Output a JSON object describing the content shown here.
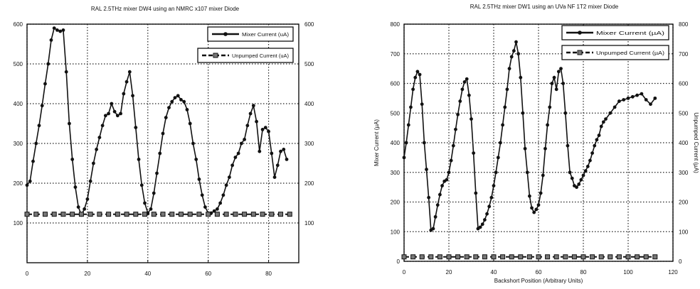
{
  "chart_data": [
    {
      "type": "line",
      "title": "RAL 2.5THz mixer DW4 using an NMRC x107 mixer Diode",
      "xlabel": "",
      "ylabel": "",
      "y2label": "",
      "xlim": [
        0,
        90
      ],
      "ylim": [
        0,
        600
      ],
      "y2lim": [
        0,
        600
      ],
      "xticks": [
        0,
        20,
        40,
        60,
        80
      ],
      "yticks": [
        100,
        200,
        300,
        400,
        500,
        600
      ],
      "y2ticks": [
        100,
        200,
        300,
        400,
        500,
        600
      ],
      "grid": true,
      "legend_position": "top-right",
      "series": [
        {
          "name": "Mixer Current (uA)",
          "style": "solid-dot",
          "x": [
            0,
            1,
            2,
            3,
            4,
            5,
            6,
            7,
            8,
            9,
            10,
            11,
            12,
            13,
            14,
            15,
            16,
            17,
            18,
            19,
            20,
            21,
            22,
            23,
            24,
            25,
            26,
            27,
            28,
            29,
            30,
            31,
            32,
            33,
            34,
            35,
            36,
            37,
            38,
            39,
            40,
            41,
            42,
            43,
            44,
            45,
            46,
            47,
            48,
            49,
            50,
            51,
            52,
            53,
            54,
            55,
            56,
            57,
            58,
            59,
            60,
            61,
            62,
            63,
            64,
            65,
            66,
            67,
            68,
            69,
            70,
            71,
            72,
            73,
            74,
            75,
            76,
            77,
            78,
            79,
            80,
            81,
            82,
            83,
            84,
            85,
            86
          ],
          "y": [
            195,
            205,
            255,
            300,
            345,
            395,
            450,
            500,
            560,
            590,
            585,
            582,
            585,
            480,
            350,
            260,
            190,
            140,
            120,
            135,
            160,
            205,
            250,
            285,
            315,
            345,
            370,
            375,
            400,
            380,
            370,
            375,
            425,
            455,
            480,
            420,
            340,
            260,
            195,
            150,
            125,
            135,
            175,
            225,
            275,
            325,
            365,
            390,
            405,
            415,
            420,
            410,
            405,
            385,
            350,
            300,
            260,
            210,
            170,
            140,
            125,
            125,
            130,
            135,
            150,
            170,
            195,
            215,
            245,
            265,
            275,
            300,
            310,
            345,
            375,
            395,
            355,
            280,
            335,
            340,
            330,
            275,
            215,
            245,
            280,
            285,
            260
          ]
        },
        {
          "name": "Unpumped Current (uA)",
          "style": "dashed-square",
          "x": [
            0,
            3,
            6,
            9,
            12,
            15,
            18,
            21,
            24,
            27,
            30,
            33,
            36,
            39,
            42,
            45,
            48,
            51,
            54,
            57,
            60,
            63,
            66,
            69,
            72,
            75,
            78,
            81,
            84,
            87
          ],
          "y": [
            122,
            122,
            122,
            122,
            122,
            122,
            122,
            122,
            122,
            122,
            122,
            122,
            122,
            122,
            122,
            122,
            122,
            122,
            122,
            122,
            122,
            122,
            122,
            122,
            122,
            122,
            122,
            122,
            122,
            122
          ]
        }
      ]
    },
    {
      "type": "line",
      "title": "RAL 2.5THz mixer DW1 using an UVa NF 1T2 mixer Diode",
      "xlabel": "Backshort Position (Arbitrary Units)",
      "ylabel": "Mixer Current (µA)",
      "y2label": "Unpumped Current (µA)",
      "xlim": [
        0,
        120
      ],
      "ylim": [
        0,
        800
      ],
      "y2lim": [
        0,
        800
      ],
      "xticks": [
        0,
        20,
        40,
        60,
        80,
        100,
        120
      ],
      "yticks": [
        0,
        100,
        200,
        300,
        400,
        500,
        600,
        700,
        800
      ],
      "y2ticks": [
        0,
        100,
        200,
        300,
        400,
        500,
        600,
        700,
        800
      ],
      "grid": true,
      "legend_position": "top-right",
      "series": [
        {
          "name": "Mixer Current (µA)",
          "style": "solid-dot",
          "x": [
            0,
            1,
            2,
            3,
            4,
            5,
            6,
            7,
            8,
            9,
            10,
            11,
            12,
            13,
            14,
            15,
            16,
            17,
            18,
            19,
            20,
            21,
            22,
            23,
            24,
            25,
            26,
            27,
            28,
            29,
            30,
            31,
            32,
            33,
            34,
            35,
            36,
            37,
            38,
            39,
            40,
            41,
            42,
            43,
            44,
            45,
            46,
            47,
            48,
            49,
            50,
            51,
            52,
            53,
            54,
            55,
            56,
            57,
            58,
            59,
            60,
            61,
            62,
            63,
            64,
            65,
            66,
            67,
            68,
            69,
            70,
            71,
            72,
            73,
            74,
            75,
            76,
            77,
            78,
            79,
            80,
            81,
            82,
            83,
            84,
            85,
            86,
            87,
            88,
            89,
            90,
            92,
            94,
            96,
            98,
            100,
            102,
            104,
            106,
            108,
            110,
            112
          ],
          "y": [
            350,
            400,
            460,
            520,
            580,
            620,
            640,
            630,
            530,
            400,
            310,
            215,
            105,
            110,
            150,
            190,
            225,
            255,
            270,
            275,
            300,
            340,
            390,
            445,
            495,
            540,
            580,
            605,
            615,
            560,
            480,
            365,
            230,
            110,
            115,
            125,
            140,
            160,
            185,
            215,
            255,
            300,
            350,
            400,
            460,
            520,
            580,
            650,
            690,
            710,
            740,
            700,
            620,
            500,
            380,
            300,
            220,
            180,
            165,
            175,
            190,
            230,
            290,
            380,
            460,
            520,
            600,
            620,
            580,
            640,
            650,
            600,
            500,
            390,
            300,
            280,
            255,
            250,
            260,
            275,
            290,
            305,
            320,
            340,
            365,
            390,
            410,
            425,
            455,
            470,
            480,
            500,
            520,
            540,
            545,
            550,
            555,
            560,
            565,
            545,
            530,
            550
          ]
        },
        {
          "name": "Unpumped Current (µA)",
          "style": "dashed-square",
          "x": [
            0,
            4,
            8,
            12,
            16,
            20,
            24,
            28,
            32,
            36,
            40,
            44,
            48,
            52,
            56,
            60,
            64,
            68,
            72,
            76,
            80,
            84,
            88,
            92,
            96,
            100,
            104,
            108,
            112
          ],
          "y": [
            15,
            15,
            15,
            15,
            15,
            15,
            15,
            15,
            15,
            15,
            15,
            15,
            15,
            15,
            15,
            15,
            15,
            15,
            15,
            15,
            15,
            15,
            15,
            15,
            15,
            15,
            15,
            15,
            15
          ]
        }
      ]
    }
  ]
}
